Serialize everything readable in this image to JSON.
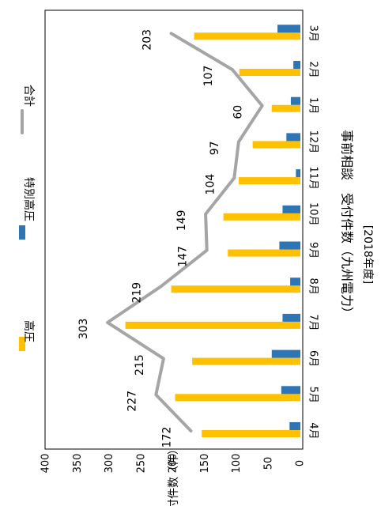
{
  "chart_data": {
    "type": "bar",
    "orientation": "rotated-90-clockwise",
    "title": "事前相談　受付件数（九州電力）",
    "subtitle": "[2018年度]",
    "ylabel": "受付件数（件）",
    "ylim": [
      0,
      400
    ],
    "yticks": [
      0,
      50,
      100,
      150,
      200,
      250,
      300,
      350,
      400
    ],
    "categories": [
      "4月",
      "5月",
      "6月",
      "7月",
      "8月",
      "9月",
      "10月",
      "11月",
      "12月",
      "1月",
      "2月",
      "3月"
    ],
    "series": [
      {
        "name": "高圧",
        "kind": "bar",
        "color": "#FFC000",
        "values": [
          155,
          197,
          170,
          275,
          203,
          114,
          121,
          97,
          75,
          45,
          96,
          167
        ]
      },
      {
        "name": "特別高圧",
        "kind": "bar",
        "color": "#2E75B6",
        "values": [
          17,
          30,
          45,
          28,
          16,
          33,
          28,
          7,
          22,
          15,
          11,
          36
        ]
      },
      {
        "name": "合計",
        "kind": "line",
        "color": "#A5A5A5",
        "values": [
          172,
          227,
          215,
          303,
          219,
          147,
          149,
          104,
          97,
          60,
          107,
          203
        ]
      }
    ],
    "grid": false,
    "legend_position": "top"
  }
}
